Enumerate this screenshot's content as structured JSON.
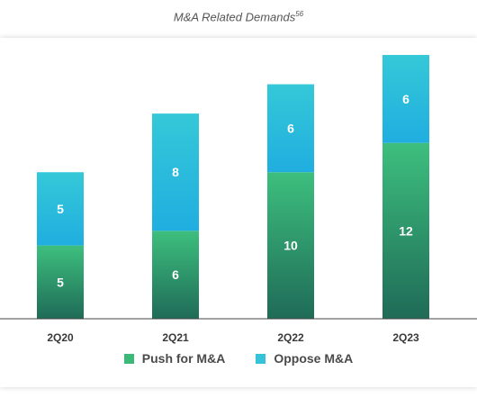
{
  "title": {
    "text": "M&A Related Demands",
    "footnote": "56"
  },
  "colors": {
    "push_top": "#3dbf7e",
    "push_bottom": "#1f6b57",
    "oppose_top": "#35c8d8",
    "oppose_bottom": "#20aee0",
    "axis": "#444444",
    "label": "#ffffff"
  },
  "chart_data": {
    "type": "bar",
    "stacked": true,
    "title": "M&A Related Demands",
    "categories": [
      "2Q20",
      "2Q21",
      "2Q22",
      "2Q23"
    ],
    "series": [
      {
        "name": "Push for M&A",
        "values": [
          5,
          6,
          10,
          12
        ]
      },
      {
        "name": "Oppose M&A",
        "values": [
          5,
          8,
          6,
          6
        ]
      }
    ],
    "ylim": [
      0,
      18.8
    ],
    "legend": "bottom",
    "grid": false
  },
  "legend": {
    "items": [
      {
        "label": "Push for M&A",
        "color": "#3cb878"
      },
      {
        "label": "Oppose M&A",
        "color": "#35c3da"
      }
    ]
  }
}
